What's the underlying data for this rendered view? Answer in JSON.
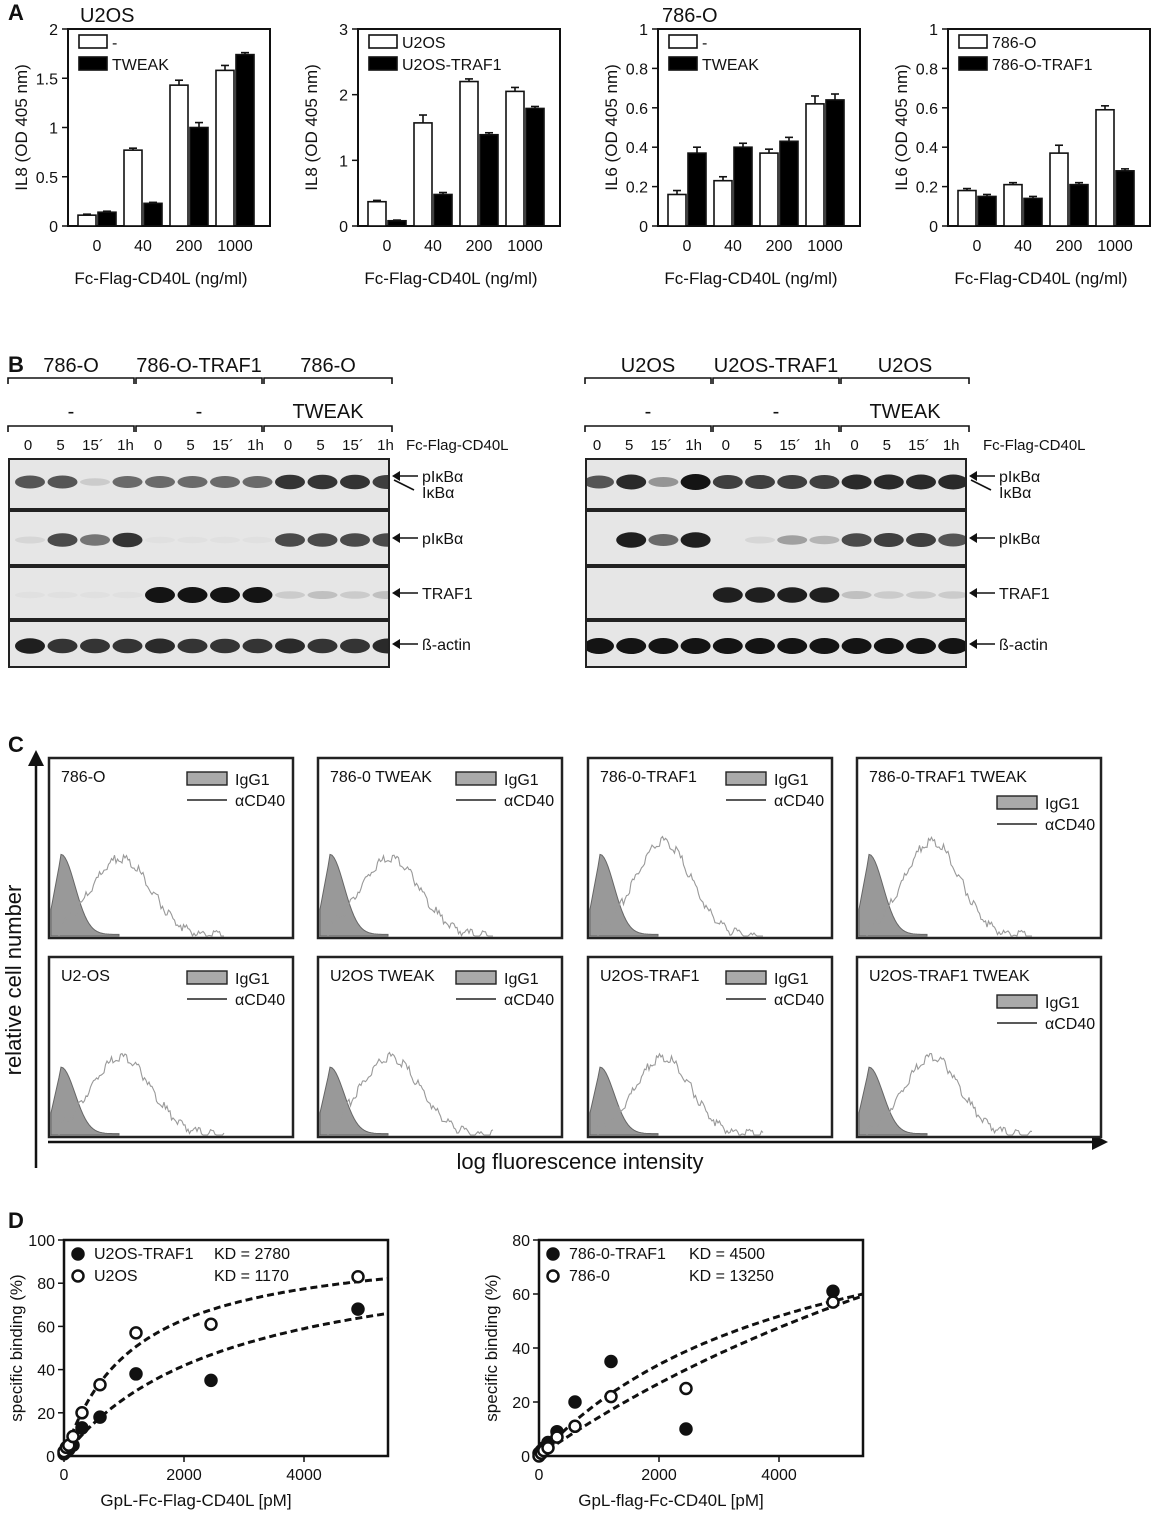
{
  "panels": {
    "A": "A",
    "B": "B",
    "C": "C",
    "D": "D"
  },
  "chart_data": [
    {
      "type": "bar",
      "id": "A1",
      "title": "U2OS",
      "xlabel": "Fc-Flag-CD40L (ng/ml)",
      "ylabel": "IL8 (OD 405 nm)",
      "categories": [
        "0",
        "40",
        "200",
        "1000"
      ],
      "ylim": [
        0,
        2
      ],
      "yticks": [
        "0",
        "0.5",
        "1",
        "1.5",
        "2"
      ],
      "ytick_values": [
        0,
        0.5,
        1,
        1.5,
        2
      ],
      "series": [
        {
          "name": "-",
          "color": "#ffffff",
          "values": [
            0.11,
            0.77,
            1.43,
            1.58
          ],
          "err": [
            0.01,
            0.02,
            0.05,
            0.05
          ]
        },
        {
          "name": "TWEAK",
          "color": "#000000",
          "values": [
            0.14,
            0.23,
            1.0,
            1.74
          ],
          "err": [
            0.01,
            0.01,
            0.05,
            0.02
          ]
        }
      ]
    },
    {
      "type": "bar",
      "id": "A2",
      "title": "",
      "xlabel": "Fc-Flag-CD40L (ng/ml)",
      "ylabel": "IL8 (OD 405 nm)",
      "categories": [
        "0",
        "40",
        "200",
        "1000"
      ],
      "ylim": [
        0,
        3
      ],
      "yticks": [
        "0",
        "1",
        "2",
        "3"
      ],
      "ytick_values": [
        0,
        1,
        2,
        3
      ],
      "series": [
        {
          "name": "U2OS",
          "color": "#ffffff",
          "values": [
            0.37,
            1.57,
            2.2,
            2.05
          ],
          "err": [
            0.02,
            0.12,
            0.04,
            0.06
          ]
        },
        {
          "name": "U2OS-TRAF1",
          "color": "#000000",
          "values": [
            0.08,
            0.48,
            1.39,
            1.79
          ],
          "err": [
            0.01,
            0.03,
            0.03,
            0.03
          ]
        }
      ]
    },
    {
      "type": "bar",
      "id": "A3",
      "title": "786-O",
      "xlabel": "Fc-Flag-CD40L (ng/ml)",
      "ylabel": "IL6 (OD 405 nm)",
      "categories": [
        "0",
        "40",
        "200",
        "1000"
      ],
      "ylim": [
        0,
        1
      ],
      "yticks": [
        "0",
        "0.2",
        "0.4",
        "0.6",
        "0.8",
        "1"
      ],
      "ytick_values": [
        0,
        0.2,
        0.4,
        0.6,
        0.8,
        1
      ],
      "series": [
        {
          "name": "-",
          "color": "#ffffff",
          "values": [
            0.16,
            0.23,
            0.37,
            0.62
          ],
          "err": [
            0.02,
            0.02,
            0.02,
            0.04
          ]
        },
        {
          "name": "TWEAK",
          "color": "#000000",
          "values": [
            0.37,
            0.4,
            0.43,
            0.64
          ],
          "err": [
            0.03,
            0.02,
            0.02,
            0.03
          ]
        }
      ]
    },
    {
      "type": "bar",
      "id": "A4",
      "title": "",
      "xlabel": "Fc-Flag-CD40L (ng/ml)",
      "ylabel": "IL6 (OD 405 nm)",
      "categories": [
        "0",
        "40",
        "200",
        "1000"
      ],
      "ylim": [
        0,
        1
      ],
      "yticks": [
        "0",
        "0.2",
        "0.4",
        "0.6",
        "0.8",
        "1"
      ],
      "ytick_values": [
        0,
        0.2,
        0.4,
        0.6,
        0.8,
        1
      ],
      "series": [
        {
          "name": "786-O",
          "color": "#ffffff",
          "values": [
            0.18,
            0.21,
            0.37,
            0.59
          ],
          "err": [
            0.01,
            0.01,
            0.04,
            0.02
          ]
        },
        {
          "name": "786-O-TRAF1",
          "color": "#000000",
          "values": [
            0.15,
            0.14,
            0.21,
            0.28
          ],
          "err": [
            0.01,
            0.01,
            0.01,
            0.01
          ]
        }
      ]
    },
    {
      "type": "scatter",
      "id": "D1",
      "xlabel": "GpL-Fc-Flag-CD40L [pM]",
      "ylabel": "specific binding (%)",
      "xlim": [
        0,
        5400
      ],
      "ylim": [
        0,
        100
      ],
      "xticks": [
        "0",
        "2000",
        "4000"
      ],
      "xtick_values": [
        0,
        2000,
        4000
      ],
      "yticks": [
        "0",
        "20",
        "40",
        "60",
        "80",
        "100"
      ],
      "ytick_values": [
        0,
        20,
        40,
        60,
        80,
        100
      ],
      "series": [
        {
          "name": "U2OS-TRAF1",
          "kd_text": "KD = 2780",
          "kd": 2780,
          "bmax": 100,
          "filled": true,
          "x": [
            0,
            40,
            80,
            150,
            300,
            600,
            1200,
            2450,
            4900
          ],
          "y": [
            1,
            2,
            3,
            5,
            13,
            18,
            38,
            35,
            68
          ]
        },
        {
          "name": "U2OS",
          "kd_text": "KD = 1170",
          "kd": 1170,
          "bmax": 100,
          "filled": false,
          "x": [
            0,
            40,
            80,
            150,
            300,
            600,
            1200,
            2450,
            4900
          ],
          "y": [
            2,
            4,
            5,
            9,
            20,
            33,
            57,
            61,
            83
          ]
        }
      ]
    },
    {
      "type": "scatter",
      "id": "D2",
      "xlabel": "GpL-flag-Fc-CD40L [pM]",
      "ylabel": "specific binding (%)",
      "xlim": [
        0,
        5400
      ],
      "ylim": [
        0,
        80
      ],
      "xticks": [
        "0",
        "2000",
        "4000"
      ],
      "xtick_values": [
        0,
        2000,
        4000
      ],
      "yticks": [
        "0",
        "20",
        "40",
        "60",
        "80"
      ],
      "ytick_values": [
        0,
        20,
        40,
        60,
        80
      ],
      "series": [
        {
          "name": "786-0-TRAF1",
          "kd_text": "KD = 4500",
          "kd": 4500,
          "bmax": 110,
          "filled": true,
          "x": [
            0,
            40,
            80,
            150,
            300,
            600,
            1200,
            2450,
            4900
          ],
          "y": [
            1,
            2,
            3,
            5,
            9,
            20,
            35,
            10,
            61
          ]
        },
        {
          "name": "786-0",
          "kd_text": "KD = 13250",
          "kd": 13250,
          "bmax": 205,
          "filled": false,
          "x": [
            0,
            40,
            80,
            150,
            300,
            600,
            1200,
            2450,
            4900
          ],
          "y": [
            0,
            1,
            2,
            3,
            7,
            11,
            22,
            25,
            57
          ]
        }
      ]
    }
  ],
  "blots": [
    {
      "id": "left",
      "groups": [
        "786-O",
        "786-O-TRAF1",
        "786-O"
      ],
      "treatments": [
        "-",
        "-",
        "TWEAK"
      ],
      "lanes": [
        "0",
        "5",
        "15´",
        "1h",
        "0",
        "5",
        "15´",
        "1h",
        "0",
        "5",
        "15´",
        "1h"
      ],
      "ligand_label": "Fc-Flag-CD40L",
      "rows": [
        {
          "label": "pIκBα",
          "label2": "IκBα",
          "intensity": [
            0.7,
            0.7,
            0.15,
            0.6,
            0.6,
            0.6,
            0.6,
            0.6,
            0.85,
            0.85,
            0.85,
            0.8
          ]
        },
        {
          "label": "pIκBα",
          "intensity": [
            0.1,
            0.75,
            0.55,
            0.85,
            0.05,
            0.05,
            0.05,
            0.05,
            0.75,
            0.75,
            0.75,
            0.75
          ]
        },
        {
          "label": "TRAF1",
          "intensity": [
            0.05,
            0.05,
            0.05,
            0.05,
            1,
            1,
            1,
            1,
            0.15,
            0.2,
            0.15,
            0.2
          ]
        },
        {
          "label": "ß-actin",
          "intensity": [
            0.95,
            0.85,
            0.85,
            0.85,
            0.9,
            0.85,
            0.85,
            0.85,
            0.9,
            0.85,
            0.85,
            0.9
          ]
        }
      ]
    },
    {
      "id": "right",
      "groups": [
        "U2OS",
        "U2OS-TRAF1",
        "U2OS"
      ],
      "treatments": [
        "-",
        "-",
        "TWEAK"
      ],
      "lanes": [
        "0",
        "5",
        "15´",
        "1h",
        "0",
        "5",
        "15´",
        "1h",
        "0",
        "5",
        "15´",
        "1h"
      ],
      "ligand_label": "Fc-Flag-CD40L",
      "rows": [
        {
          "label": "pIκBα",
          "label2": "IκBα",
          "intensity": [
            0.7,
            0.9,
            0.4,
            1,
            0.8,
            0.8,
            0.8,
            0.8,
            0.9,
            0.9,
            0.9,
            0.9
          ]
        },
        {
          "label": "pIκBα",
          "intensity": [
            0,
            0.95,
            0.6,
            0.95,
            0,
            0.1,
            0.35,
            0.25,
            0.75,
            0.8,
            0.8,
            0.7
          ]
        },
        {
          "label": "TRAF1",
          "intensity": [
            0,
            0,
            0,
            0,
            0.95,
            0.95,
            0.95,
            0.95,
            0.2,
            0.15,
            0.15,
            0.15
          ]
        },
        {
          "label": "ß-actin",
          "intensity": [
            1,
            1,
            1,
            1,
            1,
            1,
            1,
            1,
            1,
            1,
            1,
            1
          ]
        }
      ]
    }
  ],
  "flow": {
    "ylabel": "relative cell number",
    "xlabel": "log fluorescence intensity",
    "legend": {
      "fill": "IgG1",
      "line": "αCD40"
    },
    "titles": [
      "786-O",
      "786-0 TWEAK",
      "786-0-TRAF1",
      "786-0-TRAF1 TWEAK",
      "U2-OS",
      "U2OS TWEAK",
      "U2OS-TRAF1",
      "U2OS-TRAF1 TWEAK"
    ]
  }
}
